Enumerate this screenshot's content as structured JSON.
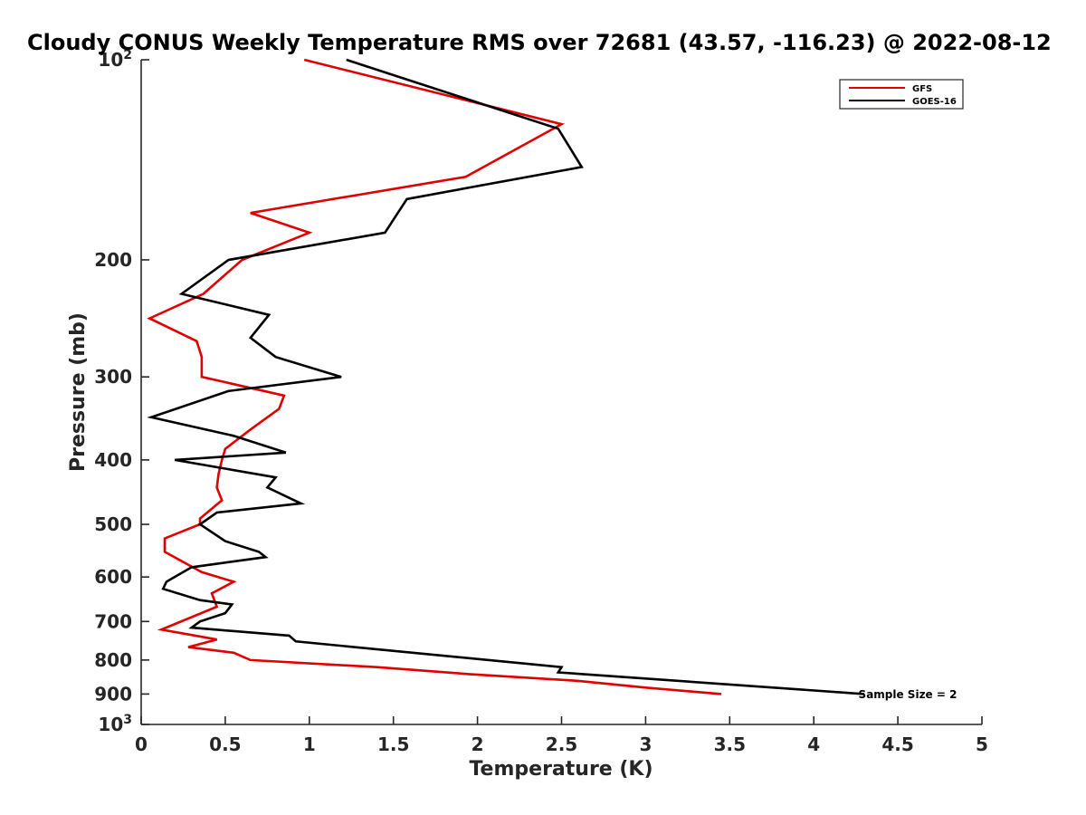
{
  "chart_data": {
    "type": "line",
    "title": "Cloudy CONUS Weekly Temperature RMS over 72681 (43.57, -116.23) @ 2022-08-12",
    "xlabel": "Temperature (K)",
    "ylabel": "Pressure (mb)",
    "xlim": [
      0,
      5
    ],
    "ylim": [
      100,
      1000
    ],
    "y_scale": "log",
    "y_reversed": true,
    "grid": false,
    "legend_position": "top-right",
    "x_ticks": [
      0,
      0.5,
      1,
      1.5,
      2,
      2.5,
      3,
      3.5,
      4,
      4.5,
      5
    ],
    "x_tick_labels": [
      "0",
      "0.5",
      "1",
      "1.5",
      "2",
      "2.5",
      "3",
      "3.5",
      "4",
      "4.5",
      "5"
    ],
    "y_ticks": [
      {
        "value": 100,
        "base": "10",
        "exp": "2"
      },
      {
        "value": 200,
        "label": "200"
      },
      {
        "value": 300,
        "label": "300"
      },
      {
        "value": 400,
        "label": "400"
      },
      {
        "value": 500,
        "label": "500"
      },
      {
        "value": 600,
        "label": "600"
      },
      {
        "value": 700,
        "label": "700"
      },
      {
        "value": 800,
        "label": "800"
      },
      {
        "value": 900,
        "label": "900"
      },
      {
        "value": 1000,
        "base": "10",
        "exp": "3"
      }
    ],
    "annotation": "Sample Size = 2",
    "series": [
      {
        "name": "GFS",
        "color": "#e00000",
        "points": [
          [
            0.97,
            100
          ],
          [
            2.5,
            125
          ],
          [
            1.93,
            150
          ],
          [
            0.65,
            170
          ],
          [
            1.0,
            182
          ],
          [
            0.6,
            200
          ],
          [
            0.37,
            225
          ],
          [
            0.05,
            245
          ],
          [
            0.33,
            265
          ],
          [
            0.36,
            280
          ],
          [
            0.36,
            300
          ],
          [
            0.85,
            320
          ],
          [
            0.82,
            335
          ],
          [
            0.65,
            360
          ],
          [
            0.5,
            385
          ],
          [
            0.48,
            400
          ],
          [
            0.46,
            420
          ],
          [
            0.45,
            440
          ],
          [
            0.48,
            460
          ],
          [
            0.35,
            490
          ],
          [
            0.35,
            500
          ],
          [
            0.14,
            525
          ],
          [
            0.14,
            550
          ],
          [
            0.36,
            590
          ],
          [
            0.55,
            610
          ],
          [
            0.42,
            635
          ],
          [
            0.45,
            665
          ],
          [
            0.12,
            720
          ],
          [
            0.45,
            745
          ],
          [
            0.28,
            765
          ],
          [
            0.55,
            780
          ],
          [
            0.65,
            800
          ],
          [
            1.4,
            820
          ],
          [
            1.95,
            840
          ],
          [
            2.6,
            860
          ],
          [
            3.0,
            880
          ],
          [
            3.45,
            900
          ]
        ]
      },
      {
        "name": "GOES-16",
        "color": "#000000",
        "points": [
          [
            1.22,
            100
          ],
          [
            2.48,
            127
          ],
          [
            2.62,
            145
          ],
          [
            1.58,
            162
          ],
          [
            1.45,
            182
          ],
          [
            0.52,
            200
          ],
          [
            0.24,
            225
          ],
          [
            0.76,
            242
          ],
          [
            0.65,
            262
          ],
          [
            0.8,
            280
          ],
          [
            1.19,
            300
          ],
          [
            0.52,
            315
          ],
          [
            0.06,
            345
          ],
          [
            0.55,
            368
          ],
          [
            0.86,
            390
          ],
          [
            0.2,
            400
          ],
          [
            0.8,
            425
          ],
          [
            0.75,
            440
          ],
          [
            0.95,
            465
          ],
          [
            0.45,
            480
          ],
          [
            0.35,
            500
          ],
          [
            0.5,
            530
          ],
          [
            0.7,
            550
          ],
          [
            0.74,
            560
          ],
          [
            0.3,
            580
          ],
          [
            0.15,
            610
          ],
          [
            0.13,
            625
          ],
          [
            0.35,
            650
          ],
          [
            0.54,
            660
          ],
          [
            0.5,
            680
          ],
          [
            0.35,
            700
          ],
          [
            0.3,
            715
          ],
          [
            0.88,
            735
          ],
          [
            0.92,
            750
          ],
          [
            2.5,
            820
          ],
          [
            2.48,
            835
          ],
          [
            4.3,
            900
          ]
        ]
      }
    ]
  }
}
